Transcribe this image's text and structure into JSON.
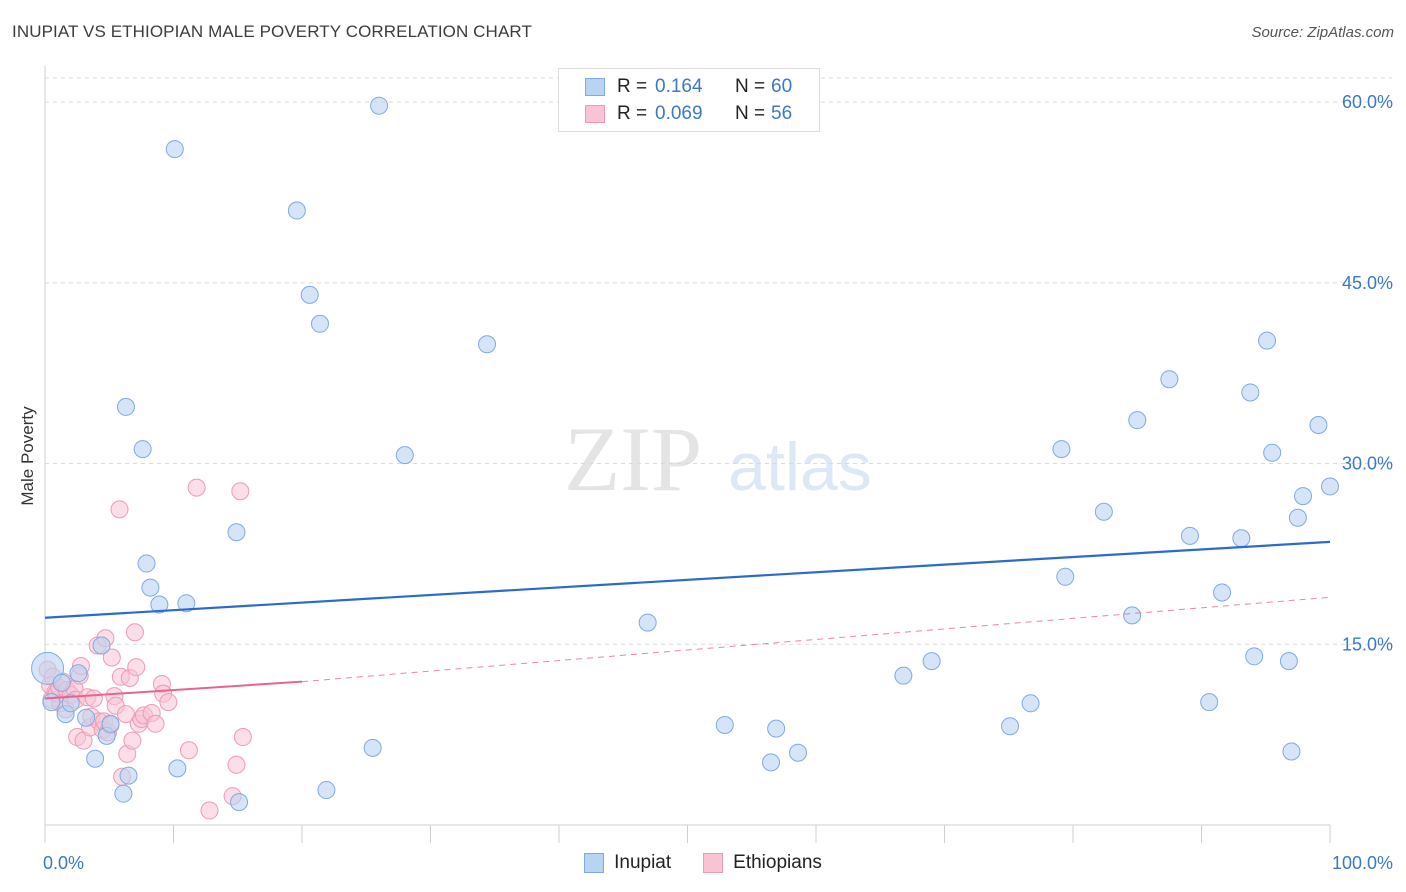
{
  "title": "INUPIAT VS ETHIOPIAN MALE POVERTY CORRELATION CHART",
  "source": "Source: ZipAtlas.com",
  "watermark": {
    "zip": "ZIP",
    "atlas": "atlas"
  },
  "legend": {
    "rows": [
      {
        "r_label": "R =",
        "r_value": "0.164",
        "n_label": "N =",
        "n_value": "60"
      },
      {
        "r_label": "R =",
        "r_value": "0.069",
        "n_label": "N =",
        "n_value": "56"
      }
    ]
  },
  "bottom_legend": {
    "series_1": "Inupiat",
    "series_2": "Ethiopians"
  },
  "colors": {
    "inupiat_fill": "#b9d3f2",
    "inupiat_stroke": "#7eaae0",
    "inupiat_line": "#2b6bd0",
    "ethiopian_fill": "#f8c3d3",
    "ethiopian_stroke": "#ee9ab5",
    "ethiopian_line": "#e8648f",
    "axis_text": "#3b78c9",
    "grid": "#d9d9d9"
  },
  "chart_data": {
    "type": "scatter",
    "title": "INUPIAT VS ETHIOPIAN MALE POVERTY CORRELATION CHART",
    "xlabel": "",
    "ylabel": "Male Poverty",
    "xlim": [
      0,
      100
    ],
    "ylim": [
      0,
      62
    ],
    "x_tick_labels": [
      "0.0%",
      "100.0%"
    ],
    "y_ticks": [
      15,
      30,
      45,
      60
    ],
    "y_tick_labels": [
      "15.0%",
      "30.0%",
      "45.0%",
      "60.0%"
    ],
    "grid": true,
    "series": [
      {
        "name": "Inupiat",
        "R": 0.164,
        "N": 60,
        "trend": {
          "x": [
            0,
            100
          ],
          "y": [
            17.2,
            23.5
          ]
        },
        "points": [
          [
            0.2,
            13.0
          ],
          [
            0.5,
            10.2
          ],
          [
            1.3,
            11.8
          ],
          [
            1.6,
            9.2
          ],
          [
            2.0,
            10.1
          ],
          [
            2.6,
            12.6
          ],
          [
            3.2,
            8.9
          ],
          [
            3.9,
            5.5
          ],
          [
            4.4,
            14.9
          ],
          [
            4.8,
            7.4
          ],
          [
            5.1,
            8.4
          ],
          [
            6.3,
            34.7
          ],
          [
            6.5,
            4.1
          ],
          [
            6.1,
            2.6
          ],
          [
            7.6,
            31.2
          ],
          [
            7.9,
            21.7
          ],
          [
            8.2,
            19.7
          ],
          [
            8.9,
            18.3
          ],
          [
            10.1,
            56.1
          ],
          [
            10.3,
            4.7
          ],
          [
            11.0,
            18.4
          ],
          [
            14.9,
            24.3
          ],
          [
            15.1,
            1.9
          ],
          [
            19.6,
            51.0
          ],
          [
            20.6,
            44.0
          ],
          [
            21.4,
            41.6
          ],
          [
            21.9,
            2.9
          ],
          [
            25.5,
            6.4
          ],
          [
            26.0,
            59.7
          ],
          [
            28.0,
            30.7
          ],
          [
            34.4,
            39.9
          ],
          [
            46.9,
            16.8
          ],
          [
            52.9,
            8.3
          ],
          [
            56.5,
            5.2
          ],
          [
            56.9,
            8.0
          ],
          [
            58.6,
            6.0
          ],
          [
            66.8,
            12.4
          ],
          [
            69.0,
            13.6
          ],
          [
            75.1,
            8.2
          ],
          [
            76.7,
            10.1
          ],
          [
            79.1,
            31.2
          ],
          [
            79.4,
            20.6
          ],
          [
            82.4,
            26.0
          ],
          [
            84.6,
            17.4
          ],
          [
            85.0,
            33.6
          ],
          [
            87.5,
            37.0
          ],
          [
            89.1,
            24.0
          ],
          [
            90.6,
            10.2
          ],
          [
            91.6,
            19.3
          ],
          [
            93.1,
            23.8
          ],
          [
            93.8,
            35.9
          ],
          [
            94.1,
            14.0
          ],
          [
            95.1,
            40.2
          ],
          [
            95.5,
            30.9
          ],
          [
            96.8,
            13.6
          ],
          [
            97.0,
            6.1
          ],
          [
            97.5,
            25.5
          ],
          [
            97.9,
            27.3
          ],
          [
            99.1,
            33.2
          ],
          [
            100.0,
            28.1
          ]
        ]
      },
      {
        "name": "Ethiopians",
        "R": 0.069,
        "N": 56,
        "trend_solid": {
          "x": [
            0,
            20
          ],
          "y": [
            10.5,
            11.9
          ]
        },
        "trend_dashed": {
          "x": [
            20,
            100
          ],
          "y": [
            11.9,
            18.9
          ]
        },
        "points": [
          [
            0.2,
            12.9
          ],
          [
            0.4,
            11.6
          ],
          [
            0.5,
            10.4
          ],
          [
            0.6,
            12.3
          ],
          [
            0.8,
            11.0
          ],
          [
            0.9,
            10.9
          ],
          [
            1.1,
            11.4
          ],
          [
            1.2,
            10.1
          ],
          [
            1.4,
            11.9
          ],
          [
            1.6,
            9.6
          ],
          [
            1.7,
            11.2
          ],
          [
            2.0,
            10.8
          ],
          [
            2.3,
            11.3
          ],
          [
            2.4,
            10.4
          ],
          [
            2.5,
            7.3
          ],
          [
            2.7,
            12.4
          ],
          [
            2.8,
            13.2
          ],
          [
            3.0,
            7.0
          ],
          [
            3.3,
            10.6
          ],
          [
            3.5,
            8.1
          ],
          [
            3.6,
            9.0
          ],
          [
            3.8,
            10.5
          ],
          [
            4.1,
            14.9
          ],
          [
            4.2,
            8.6
          ],
          [
            4.5,
            7.9
          ],
          [
            4.6,
            8.6
          ],
          [
            4.7,
            15.5
          ],
          [
            4.9,
            7.7
          ],
          [
            5.1,
            8.3
          ],
          [
            5.2,
            13.9
          ],
          [
            5.4,
            10.7
          ],
          [
            5.5,
            9.9
          ],
          [
            5.8,
            26.2
          ],
          [
            5.9,
            12.3
          ],
          [
            6.0,
            4.0
          ],
          [
            6.3,
            9.2
          ],
          [
            6.4,
            5.9
          ],
          [
            6.6,
            12.2
          ],
          [
            6.8,
            7.0
          ],
          [
            7.0,
            16.0
          ],
          [
            7.1,
            13.1
          ],
          [
            7.3,
            8.4
          ],
          [
            7.5,
            8.8
          ],
          [
            7.7,
            9.1
          ],
          [
            8.3,
            9.3
          ],
          [
            8.6,
            8.4
          ],
          [
            9.1,
            11.7
          ],
          [
            9.2,
            10.9
          ],
          [
            9.6,
            10.2
          ],
          [
            11.2,
            6.2
          ],
          [
            11.8,
            28.0
          ],
          [
            12.8,
            1.2
          ],
          [
            14.6,
            2.4
          ],
          [
            14.9,
            5.0
          ],
          [
            15.2,
            27.7
          ],
          [
            15.4,
            7.3
          ]
        ]
      }
    ]
  }
}
